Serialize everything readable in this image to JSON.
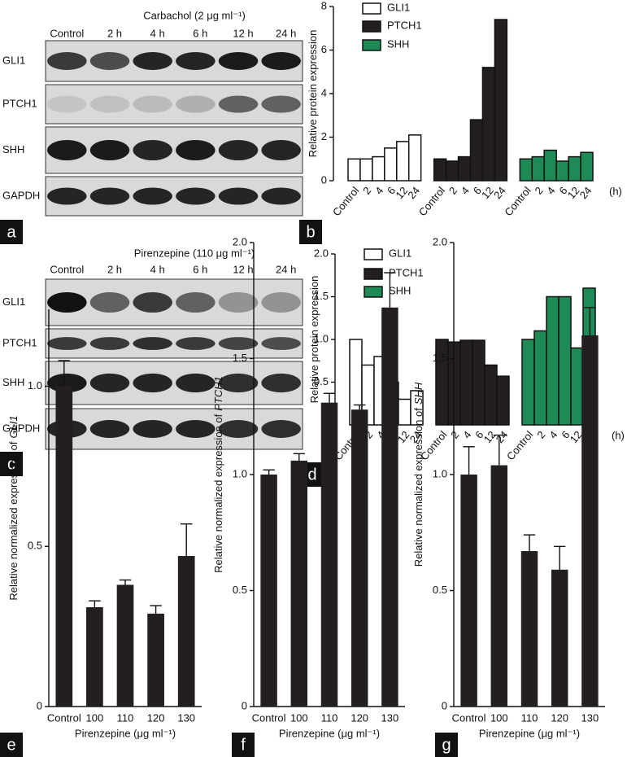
{
  "blots": [
    {
      "panel": "a",
      "title": "Carbachol (2 μg ml⁻¹)",
      "lanes": [
        "Control",
        "2 h",
        "4 h",
        "6 h",
        "12 h",
        "24 h"
      ],
      "rows": [
        "GLI1",
        "PTCH1",
        "SHH",
        "GAPDH"
      ]
    },
    {
      "panel": "c",
      "title": "Pirenzepine (110 μg ml⁻¹)",
      "lanes": [
        "Control",
        "2 h",
        "4 h",
        "6 h",
        "12 h",
        "24 h"
      ],
      "rows": [
        "GLI1",
        "PTCH1",
        "SHH",
        "GAPDH"
      ]
    }
  ],
  "chart_data": [
    {
      "type": "bar",
      "panel": "b",
      "ylabel": "Relative protein expression",
      "categories": [
        "Control",
        "2",
        "4",
        "6",
        "12",
        "24"
      ],
      "unit": "(h)",
      "series": [
        {
          "name": "GLI1",
          "color": "#ffffff",
          "values": [
            1,
            1,
            1.1,
            1.5,
            1.8,
            2.1
          ]
        },
        {
          "name": "PTCH1",
          "color": "#231f20",
          "values": [
            1,
            0.9,
            1.1,
            2.8,
            5.2,
            7.4
          ]
        },
        {
          "name": "SHH",
          "color": "#1e8a55",
          "values": [
            1,
            1.1,
            1.4,
            0.9,
            1.1,
            1.3
          ]
        }
      ],
      "ylim": [
        0,
        8
      ],
      "yticks": [
        0,
        2,
        4,
        6,
        8
      ]
    },
    {
      "type": "bar",
      "panel": "d",
      "ylabel": "Relative protein expression",
      "categories": [
        "Control",
        "2",
        "4",
        "6",
        "12",
        "24"
      ],
      "unit": "(h)",
      "series": [
        {
          "name": "GLI1",
          "color": "#ffffff",
          "values": [
            1.0,
            0.7,
            0.8,
            0.5,
            0.3,
            0.4
          ]
        },
        {
          "name": "PTCH1",
          "color": "#231f20",
          "values": [
            1.0,
            0.97,
            0.99,
            0.99,
            0.7,
            0.57
          ]
        },
        {
          "name": "SHH",
          "color": "#1e8a55",
          "values": [
            1.0,
            1.1,
            1.5,
            1.5,
            0.9,
            1.6
          ]
        }
      ],
      "ylim": [
        0,
        2
      ],
      "yticks": [
        0,
        0.5,
        {
          "value": 1,
          "label": "1.0"
        },
        1.5,
        {
          "value": 2,
          "label": "2.0"
        }
      ]
    },
    {
      "type": "bar",
      "panel": "e",
      "ylabel": "Relative normalized expression of",
      "ylabel_gene": "GLI1",
      "xlabel": "Pirenzepine (μg ml⁻¹)",
      "categories": [
        "Control",
        "100",
        "110",
        "120",
        "130"
      ],
      "color": "#231f20",
      "values": [
        1.0,
        0.31,
        0.38,
        0.29,
        0.47
      ],
      "errors": [
        0.08,
        0.02,
        0.015,
        0.025,
        0.1
      ],
      "ylim": [
        0,
        1.24
      ],
      "yticks": [
        0,
        0.5,
        {
          "value": 1,
          "label": "1.0"
        }
      ]
    },
    {
      "type": "bar",
      "panel": "f",
      "ylabel": "Relative normalized expression of",
      "ylabel_gene": "PTCH1",
      "xlabel": "Pirenzepine (μg ml⁻¹)",
      "categories": [
        "Control",
        "100",
        "110",
        "120",
        "130"
      ],
      "color": "#231f20",
      "values": [
        1.0,
        1.06,
        1.31,
        1.28,
        1.72
      ],
      "errors": [
        0.02,
        0.03,
        0.04,
        0.02,
        0.15
      ],
      "ylim": [
        0,
        2
      ],
      "yticks": [
        0,
        0.5,
        {
          "value": 1,
          "label": "1.0"
        },
        1.5,
        {
          "value": 2,
          "label": "2.0"
        }
      ]
    },
    {
      "type": "bar",
      "panel": "g",
      "ylabel": "Relative normalized expression of",
      "ylabel_gene": "SHH",
      "xlabel": "Pirenzepine (μg ml⁻¹)",
      "categories": [
        "Control",
        "100",
        "110",
        "120",
        "130"
      ],
      "color": "#231f20",
      "values": [
        1.0,
        1.04,
        0.67,
        0.59,
        1.6
      ],
      "errors": [
        0.12,
        0.13,
        0.07,
        0.1,
        0.12
      ],
      "ylim": [
        0,
        2
      ],
      "yticks": [
        0,
        0.5,
        {
          "value": 1,
          "label": "1.0"
        },
        1.5,
        {
          "value": 2,
          "label": "2.0"
        }
      ]
    }
  ]
}
